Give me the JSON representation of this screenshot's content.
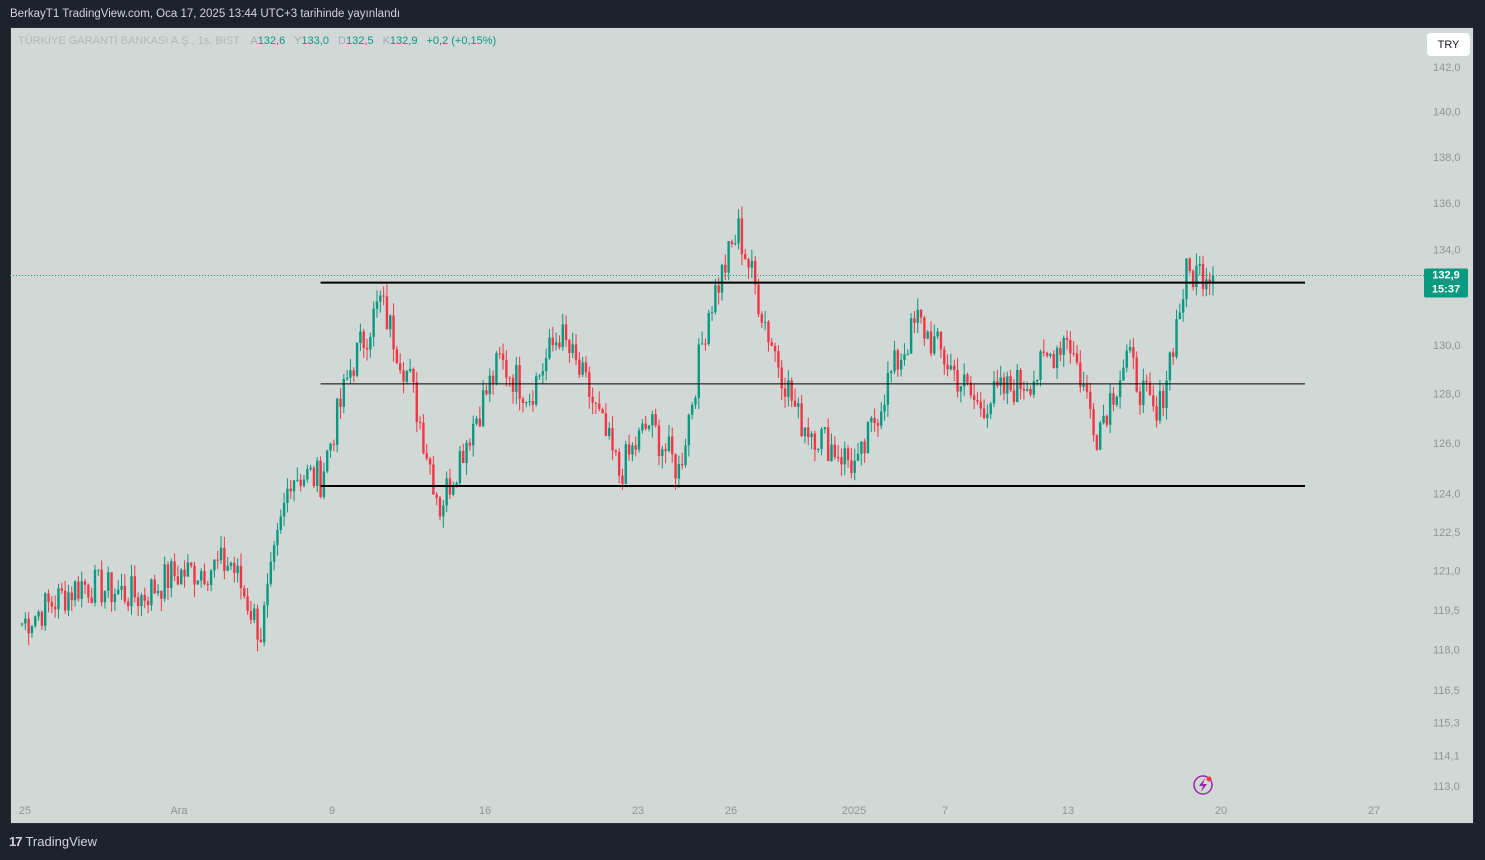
{
  "header": {
    "published": "BerkayT1 TradingView.com, Oca 17, 2025 13:44 UTC+3 tarihinde yayınlandı"
  },
  "legend": {
    "symbol": "TÜRKİYE GARANTİ BANKASI A.Ş., 1s, BIST",
    "open_label": "A",
    "open": "132,6",
    "high_label": "Y",
    "high": "133,0",
    "low_label": "D",
    "low": "132,5",
    "close_label": "K",
    "close": "132,9",
    "change": "+0,2 (+0,15%)"
  },
  "currency_button": "TRY",
  "price_badge": {
    "price": "132,9",
    "countdown": "15:37"
  },
  "footer": {
    "brand": "TradingView",
    "brand_mark": "17"
  },
  "colors": {
    "up": "#089981",
    "down": "#f23645",
    "background": "#d1d8d6",
    "frame": "#1e222d",
    "level_line": "#000000",
    "last_price_line": "#089981"
  },
  "chart_data": {
    "type": "candlestick",
    "y_scale": "log",
    "ylim": [
      112.6,
      143.5
    ],
    "y_ticks": [
      "142,0",
      "140,0",
      "138,0",
      "136,0",
      "134,0",
      "130,0",
      "128,0",
      "126,0",
      "124,0",
      "122,5",
      "121,0",
      "119,5",
      "118,0",
      "116,5",
      "115,3",
      "114,1",
      "113,0"
    ],
    "x_ticks": [
      "25",
      "Ara",
      "9",
      "16",
      "23",
      "26",
      "2025",
      "7",
      "13",
      "20",
      "27"
    ],
    "x_range": [
      "2024-11-25",
      "2025-01-28"
    ],
    "last_price": 132.9,
    "horizontal_levels": [
      {
        "price": 132.6,
        "style": "thick",
        "from": "2024-12-09",
        "to": "2025-01-23"
      },
      {
        "price": 128.4,
        "style": "thin",
        "from": "2024-12-09",
        "to": "2025-01-23"
      },
      {
        "price": 124.3,
        "style": "thick",
        "from": "2024-12-09",
        "to": "2025-01-23"
      }
    ],
    "close_path": [
      {
        "date": "2024-11-25",
        "close": 119.0
      },
      {
        "date": "2024-11-27",
        "close": 120.5
      },
      {
        "date": "2024-11-29",
        "close": 120.0
      },
      {
        "date": "2024-12-02",
        "close": 120.8
      },
      {
        "date": "2024-12-04",
        "close": 121.3
      },
      {
        "date": "2024-12-05",
        "close": 118.6
      },
      {
        "date": "2024-12-06",
        "close": 124.8
      },
      {
        "date": "2024-12-09",
        "close": 124.6
      },
      {
        "date": "2024-12-10",
        "close": 129.0
      },
      {
        "date": "2024-12-11",
        "close": 131.8
      },
      {
        "date": "2024-12-12",
        "close": 128.5
      },
      {
        "date": "2024-12-13",
        "close": 123.5
      },
      {
        "date": "2024-12-16",
        "close": 126.5
      },
      {
        "date": "2024-12-17",
        "close": 129.3
      },
      {
        "date": "2024-12-18",
        "close": 128.0
      },
      {
        "date": "2024-12-19",
        "close": 130.5
      },
      {
        "date": "2024-12-20",
        "close": 128.0
      },
      {
        "date": "2024-12-23",
        "close": 124.8
      },
      {
        "date": "2024-12-24",
        "close": 126.8
      },
      {
        "date": "2024-12-25",
        "close": 124.9
      },
      {
        "date": "2024-12-26",
        "close": 131.5
      },
      {
        "date": "2024-12-27",
        "close": 134.8
      },
      {
        "date": "2024-12-30",
        "close": 130.5
      },
      {
        "date": "2024-12-31",
        "close": 127.0
      },
      {
        "date": "2025-01-02",
        "close": 125.0
      },
      {
        "date": "2025-01-03",
        "close": 128.5
      },
      {
        "date": "2025-01-06",
        "close": 131.0
      },
      {
        "date": "2025-01-08",
        "close": 127.5
      },
      {
        "date": "2025-01-10",
        "close": 128.8
      },
      {
        "date": "2025-01-13",
        "close": 130.5
      },
      {
        "date": "2025-01-14",
        "close": 126.5
      },
      {
        "date": "2025-01-15",
        "close": 129.5
      },
      {
        "date": "2025-01-16",
        "close": 126.8
      },
      {
        "date": "2025-01-17",
        "close": 132.9
      }
    ]
  }
}
